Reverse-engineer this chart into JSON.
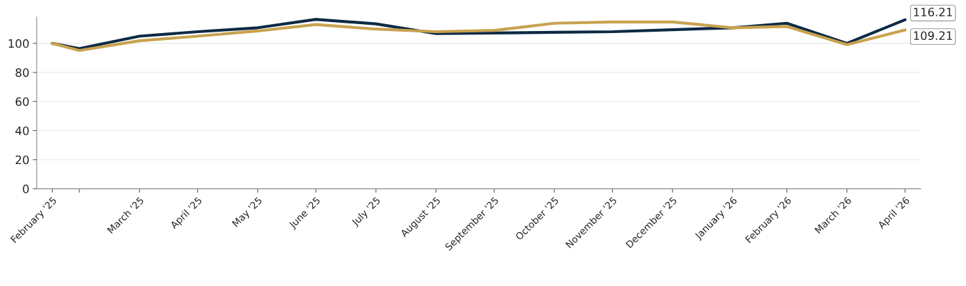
{
  "chart_data": {
    "type": "line",
    "x": [
      "2025-02-14",
      "2025-02-28",
      "2025-03-31",
      "2025-04-30",
      "2025-05-31",
      "2025-06-30",
      "2025-07-31",
      "2025-08-31",
      "2025-09-30",
      "2025-10-31",
      "2025-11-30",
      "2025-12-31",
      "2026-01-31",
      "2026-02-28",
      "2026-03-31",
      "2026-04-30"
    ],
    "series": [
      {
        "color": "#0d2a45",
        "values": [
          100,
          96.4,
          104.9,
          108,
          110.7,
          116.5,
          113.4,
          106.7,
          107.1,
          107.6,
          108,
          109.4,
          110.7,
          113.8,
          100,
          116.21
        ],
        "value_labels": [
          null,
          null,
          null,
          null,
          null,
          null,
          null,
          null,
          null,
          null,
          null,
          null,
          null,
          null,
          null,
          "116.21"
        ]
      },
      {
        "color": "#c8a24f",
        "values": [
          100,
          95.1,
          101.8,
          104.9,
          108.5,
          112.9,
          109.8,
          108,
          108.9,
          113.8,
          114.7,
          114.7,
          110.7,
          111.6,
          99.1,
          109.21
        ],
        "value_labels": [
          null,
          null,
          null,
          null,
          null,
          null,
          null,
          null,
          null,
          null,
          null,
          null,
          null,
          null,
          null,
          "109.21"
        ]
      }
    ],
    "xlim": [
      "2025-02-06",
      "2026-05-08"
    ],
    "xticks": [
      {
        "value": "2025-02-14",
        "label": "February '25"
      },
      {
        "value": "2025-02-28",
        "label": null
      },
      {
        "value": "2025-03-31",
        "label": "March '25"
      },
      {
        "value": "2025-04-30",
        "label": "April '25"
      },
      {
        "value": "2025-05-31",
        "label": "May '25"
      },
      {
        "value": "2025-06-30",
        "label": "June '25"
      },
      {
        "value": "2025-07-31",
        "label": "July '25"
      },
      {
        "value": "2025-08-31",
        "label": "August '25"
      },
      {
        "value": "2025-09-30",
        "label": "September '25"
      },
      {
        "value": "2025-10-31",
        "label": "October '25"
      },
      {
        "value": "2025-11-30",
        "label": "November '25"
      },
      {
        "value": "2025-12-31",
        "label": "December '25"
      },
      {
        "value": "2026-01-31",
        "label": "January '26"
      },
      {
        "value": "2026-02-28",
        "label": "February '26"
      },
      {
        "value": "2026-03-31",
        "label": "March '26"
      },
      {
        "value": "2026-04-30",
        "label": "April '26"
      }
    ],
    "ylim": [
      0,
      118
    ],
    "yticks": [
      0,
      20,
      40,
      60,
      80,
      100
    ],
    "grid": "y",
    "marker": "none",
    "line_style": "solid"
  }
}
